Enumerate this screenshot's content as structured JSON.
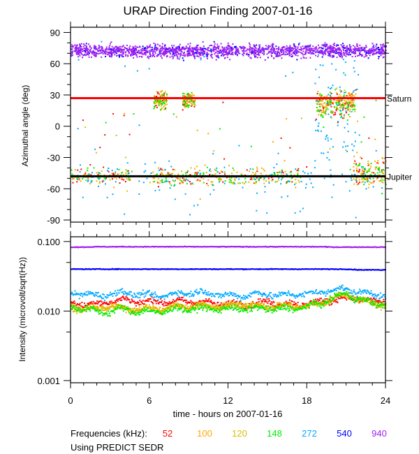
{
  "chart_data": [
    {
      "type": "scatter",
      "title": "URAP Direction Finding  2007-01-16",
      "ylabel": "Azimuthal angle (deg)",
      "xlim": [
        0,
        24
      ],
      "ylim": [
        -92,
        95
      ],
      "xticks": [
        "0",
        "6",
        "12",
        "18",
        "24"
      ],
      "yticks": [
        "90",
        "60",
        "30",
        "0",
        "-30",
        "-60",
        "-90"
      ],
      "reference_lines": [
        {
          "label": "Saturn",
          "value": 27,
          "color": "#ff0000"
        },
        {
          "label": "Jupiter",
          "value": -48,
          "color": "#000000"
        }
      ],
      "series": [
        {
          "name": "52",
          "color": "#ff0000",
          "azimuth_clusters": [
            -48,
            25
          ]
        },
        {
          "name": "100",
          "color": "#ffa500",
          "azimuth_clusters": [
            -48,
            25
          ]
        },
        {
          "name": "120",
          "color": "#d4c000",
          "azimuth_clusters": [
            -48,
            25
          ]
        },
        {
          "name": "148",
          "color": "#00ee00",
          "azimuth_clusters": [
            -48,
            25
          ]
        },
        {
          "name": "272",
          "color": "#00aaff",
          "azimuth_clusters": [
            -48,
            25,
            73
          ]
        },
        {
          "name": "540",
          "color": "#0000ff",
          "azimuth_clusters": [
            73
          ]
        },
        {
          "name": "940",
          "color": "#a020f0",
          "azimuth_clusters": [
            73
          ]
        }
      ]
    },
    {
      "type": "scatter",
      "ylabel": "Intensity (microvolt/sqrt(Hz))",
      "xlabel": "time - hours on 2007-01-16",
      "xlim": [
        0,
        24
      ],
      "ylim": [
        0.00093,
        0.117
      ],
      "yscale": "log",
      "xticks": [
        "0",
        "6",
        "12",
        "18",
        "24"
      ],
      "yticks": [
        "0.100",
        "0.010",
        "0.001"
      ],
      "hours": [
        0,
        1,
        2,
        3,
        4,
        5,
        6,
        7,
        8,
        9,
        10,
        11,
        12,
        13,
        14,
        15,
        16,
        17,
        18,
        19,
        20,
        21,
        22,
        23,
        24
      ],
      "series": [
        {
          "name": "52",
          "color": "#ff0000",
          "values": [
            0.013,
            0.013,
            0.013,
            0.014,
            0.015,
            0.014,
            0.014,
            0.014,
            0.014,
            0.014,
            0.014,
            0.013,
            0.013,
            0.013,
            0.013,
            0.014,
            0.013,
            0.013,
            0.013,
            0.014,
            0.015,
            0.016,
            0.015,
            0.014,
            0.014
          ]
        },
        {
          "name": "100",
          "color": "#ffa500",
          "values": [
            0.012,
            0.011,
            0.011,
            0.012,
            0.011,
            0.011,
            0.011,
            0.011,
            0.012,
            0.012,
            0.012,
            0.012,
            0.012,
            0.013,
            0.012,
            0.012,
            0.012,
            0.012,
            0.012,
            0.013,
            0.016,
            0.018,
            0.015,
            0.013,
            0.013
          ]
        },
        {
          "name": "120",
          "color": "#d4c000",
          "values": [
            0.011,
            0.011,
            0.011,
            0.012,
            0.011,
            0.011,
            0.011,
            0.011,
            0.012,
            0.012,
            0.012,
            0.012,
            0.012,
            0.013,
            0.012,
            0.012,
            0.012,
            0.012,
            0.012,
            0.013,
            0.016,
            0.018,
            0.015,
            0.013,
            0.013
          ]
        },
        {
          "name": "148",
          "color": "#00ee00",
          "values": [
            0.012,
            0.011,
            0.01,
            0.01,
            0.011,
            0.01,
            0.01,
            0.01,
            0.011,
            0.011,
            0.011,
            0.011,
            0.011,
            0.011,
            0.011,
            0.011,
            0.011,
            0.011,
            0.012,
            0.013,
            0.016,
            0.018,
            0.015,
            0.013,
            0.013
          ]
        },
        {
          "name": "272",
          "color": "#00aaff",
          "values": [
            0.019,
            0.018,
            0.017,
            0.018,
            0.019,
            0.018,
            0.017,
            0.017,
            0.018,
            0.019,
            0.019,
            0.018,
            0.017,
            0.017,
            0.018,
            0.018,
            0.017,
            0.018,
            0.018,
            0.019,
            0.021,
            0.021,
            0.019,
            0.018,
            0.017
          ]
        },
        {
          "name": "540",
          "color": "#0000ff",
          "values": [
            0.041,
            0.041,
            0.041,
            0.041,
            0.041,
            0.041,
            0.041,
            0.041,
            0.041,
            0.041,
            0.041,
            0.041,
            0.041,
            0.041,
            0.041,
            0.041,
            0.041,
            0.041,
            0.041,
            0.041,
            0.041,
            0.041,
            0.04,
            0.04,
            0.04
          ]
        },
        {
          "name": "940",
          "color": "#a020f0",
          "values": [
            0.085,
            0.085,
            0.086,
            0.086,
            0.086,
            0.086,
            0.086,
            0.086,
            0.086,
            0.086,
            0.086,
            0.086,
            0.086,
            0.086,
            0.086,
            0.086,
            0.086,
            0.086,
            0.086,
            0.086,
            0.085,
            0.085,
            0.085,
            0.085,
            0.085
          ]
        }
      ]
    }
  ],
  "legend": {
    "label": "Frequencies (kHz):",
    "items": [
      "52",
      "100",
      "120",
      "148",
      "272",
      "540",
      "940"
    ],
    "colors": [
      "#ff0000",
      "#ffa500",
      "#d4c000",
      "#00ee00",
      "#00aaff",
      "#0000ff",
      "#a020f0"
    ]
  },
  "footer": "Using PREDICT SEDR"
}
